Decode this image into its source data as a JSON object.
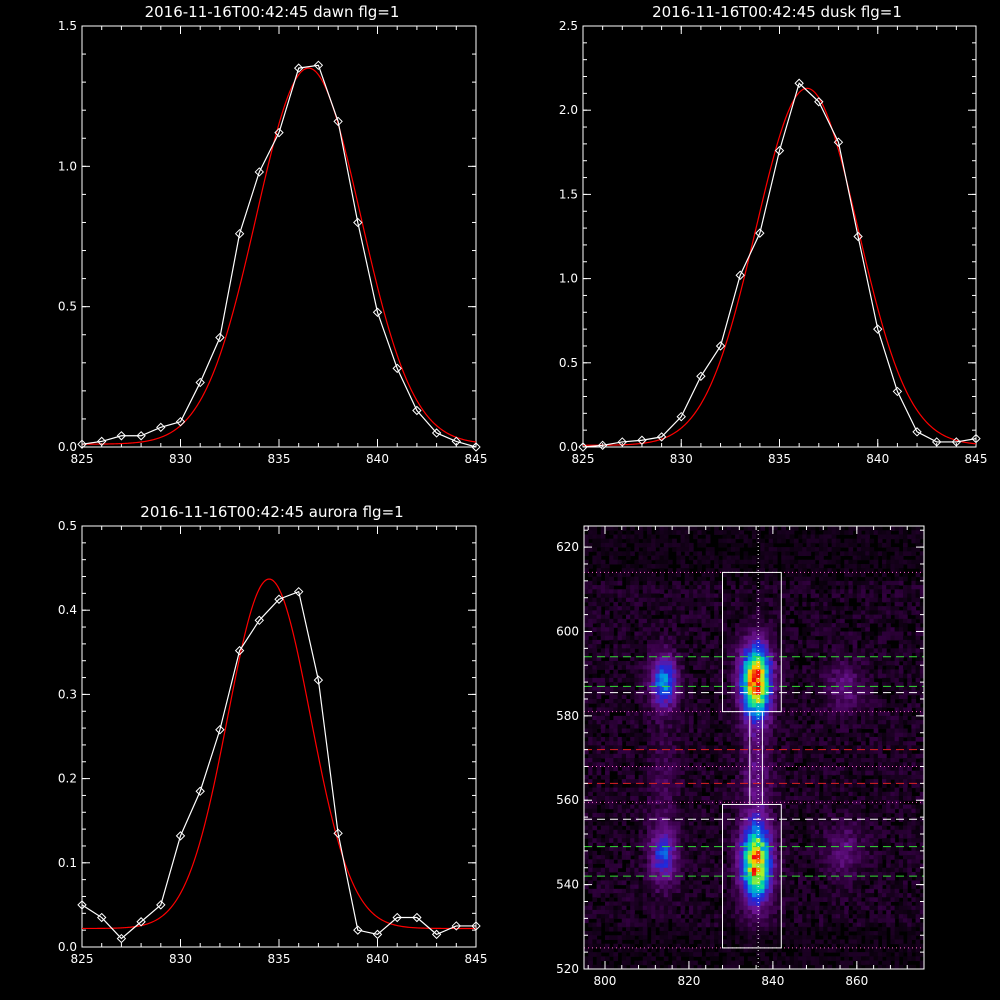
{
  "chart_data": [
    {
      "id": "dawn",
      "type": "line",
      "title": "2016-11-16T00:42:45 dawn flg=1",
      "xlim": [
        825,
        845
      ],
      "ylim": [
        0,
        1.5
      ],
      "xticks": [
        "825",
        "830",
        "835",
        "840",
        "845"
      ],
      "yticks": [
        "0.0",
        "0.5",
        "1.0",
        "1.5"
      ],
      "series": [
        {
          "kind": "data",
          "color": "#ffffff",
          "marker": "diamond",
          "x": [
            825,
            826,
            827,
            828,
            829,
            830,
            831,
            832,
            833,
            834,
            835,
            836,
            837,
            838,
            839,
            840,
            841,
            842,
            843,
            844,
            845
          ],
          "y": [
            0.01,
            0.02,
            0.04,
            0.04,
            0.07,
            0.09,
            0.23,
            0.39,
            0.76,
            0.98,
            1.12,
            1.35,
            1.36,
            1.16,
            0.8,
            0.48,
            0.28,
            0.13,
            0.05,
            0.02,
            0.0
          ]
        },
        {
          "kind": "fit",
          "color": "#ff0000",
          "gauss": {
            "a": 1.34,
            "mu": 836.5,
            "sigma": 2.65,
            "c": 0.01
          }
        }
      ]
    },
    {
      "id": "dusk",
      "type": "line",
      "title": "2016-11-16T00:42:45 dusk flg=1",
      "xlim": [
        825,
        845
      ],
      "ylim": [
        0,
        2.5
      ],
      "xticks": [
        "825",
        "830",
        "835",
        "840",
        "845"
      ],
      "yticks": [
        "0.0",
        "0.5",
        "1.0",
        "1.5",
        "2.0",
        "2.5"
      ],
      "series": [
        {
          "kind": "data",
          "color": "#ffffff",
          "marker": "diamond",
          "x": [
            825,
            826,
            827,
            828,
            829,
            830,
            831,
            832,
            833,
            834,
            835,
            836,
            837,
            838,
            839,
            840,
            841,
            842,
            843,
            844,
            845
          ],
          "y": [
            0.0,
            0.01,
            0.03,
            0.04,
            0.06,
            0.18,
            0.42,
            0.6,
            1.02,
            1.27,
            1.76,
            2.16,
            2.05,
            1.81,
            1.25,
            0.7,
            0.33,
            0.09,
            0.03,
            0.03,
            0.05
          ]
        },
        {
          "kind": "fit",
          "color": "#ff0000",
          "gauss": {
            "a": 2.12,
            "mu": 836.4,
            "sigma": 2.6,
            "c": 0.01
          }
        }
      ]
    },
    {
      "id": "aurora",
      "type": "line",
      "title": "2016-11-16T00:42:45 aurora flg=1",
      "xlim": [
        825,
        845
      ],
      "ylim": [
        0,
        0.5
      ],
      "xticks": [
        "825",
        "830",
        "835",
        "840",
        "845"
      ],
      "yticks": [
        "0.0",
        "0.1",
        "0.2",
        "0.3",
        "0.4",
        "0.5"
      ],
      "series": [
        {
          "kind": "data",
          "color": "#ffffff",
          "marker": "diamond",
          "x": [
            825,
            826,
            827,
            828,
            829,
            830,
            831,
            832,
            833,
            834,
            835,
            836,
            837,
            838,
            839,
            840,
            841,
            842,
            843,
            844,
            845
          ],
          "y": [
            0.05,
            0.035,
            0.01,
            0.03,
            0.05,
            0.132,
            0.185,
            0.258,
            0.352,
            0.388,
            0.413,
            0.422,
            0.317,
            0.135,
            0.02,
            0.015,
            0.035,
            0.035,
            0.015,
            0.025,
            0.025
          ]
        },
        {
          "kind": "fit",
          "color": "#ff0000",
          "gauss": {
            "a": 0.415,
            "mu": 834.5,
            "sigma": 2.1,
            "c": 0.022
          }
        }
      ]
    },
    {
      "id": "image",
      "type": "heatmap",
      "xlim": [
        795,
        876
      ],
      "ylim": [
        520,
        625
      ],
      "xticks": [
        800,
        820,
        840,
        860
      ],
      "yticks": [
        520,
        540,
        560,
        580,
        600,
        620
      ],
      "blobs": [
        {
          "x": 836,
          "y": 588,
          "sx": 2.5,
          "sy": 6,
          "amp": 1.0
        },
        {
          "x": 836,
          "y": 545,
          "sx": 2.5,
          "sy": 6.5,
          "amp": 0.9
        },
        {
          "x": 814,
          "y": 588,
          "sx": 2.2,
          "sy": 4.5,
          "amp": 0.5
        },
        {
          "x": 814,
          "y": 547,
          "sx": 2.2,
          "sy": 5,
          "amp": 0.4
        },
        {
          "x": 857,
          "y": 587,
          "sx": 3,
          "sy": 4,
          "amp": 0.18
        },
        {
          "x": 857,
          "y": 548,
          "sx": 3,
          "sy": 4.5,
          "amp": 0.17
        },
        {
          "x": 836,
          "y": 566,
          "sx": 2.5,
          "sy": 7,
          "amp": 0.18
        },
        {
          "x": 814,
          "y": 566,
          "sx": 2.5,
          "sy": 7,
          "amp": 0.1
        }
      ],
      "boxes": [
        {
          "x0": 828,
          "x1": 842,
          "y0": 581,
          "y1": 614,
          "color": "#ffffff"
        },
        {
          "x0": 828,
          "x1": 842,
          "y0": 525,
          "y1": 559,
          "color": "#ffffff"
        },
        {
          "x0": 834.5,
          "x1": 837.5,
          "y0": 559,
          "y1": 581,
          "color": "#ffffff"
        }
      ],
      "vline": {
        "x": 836.5,
        "color": "#ffffff",
        "style": "dotted"
      },
      "hlines": [
        {
          "y": 614,
          "color": "#ff66cc",
          "style": "dotted"
        },
        {
          "y": 594,
          "color": "#33dd33",
          "style": "dashed"
        },
        {
          "y": 587,
          "color": "#33dd33",
          "style": "dashed"
        },
        {
          "y": 585.5,
          "color": "#ffffff",
          "style": "dashed"
        },
        {
          "y": 581,
          "color": "#ff66cc",
          "style": "dotted"
        },
        {
          "y": 572,
          "color": "#dd2222",
          "style": "dashed"
        },
        {
          "y": 568,
          "color": "#ff66cc",
          "style": "dotted"
        },
        {
          "y": 564,
          "color": "#dd2222",
          "style": "dashed"
        },
        {
          "y": 559.5,
          "color": "#ff66cc",
          "style": "dotted"
        },
        {
          "y": 555.5,
          "color": "#ffffff",
          "style": "dashed"
        },
        {
          "y": 549,
          "color": "#33dd33",
          "style": "dashed"
        },
        {
          "y": 542,
          "color": "#33dd33",
          "style": "dashed"
        },
        {
          "y": 525,
          "color": "#ff66cc",
          "style": "dotted"
        }
      ]
    }
  ]
}
